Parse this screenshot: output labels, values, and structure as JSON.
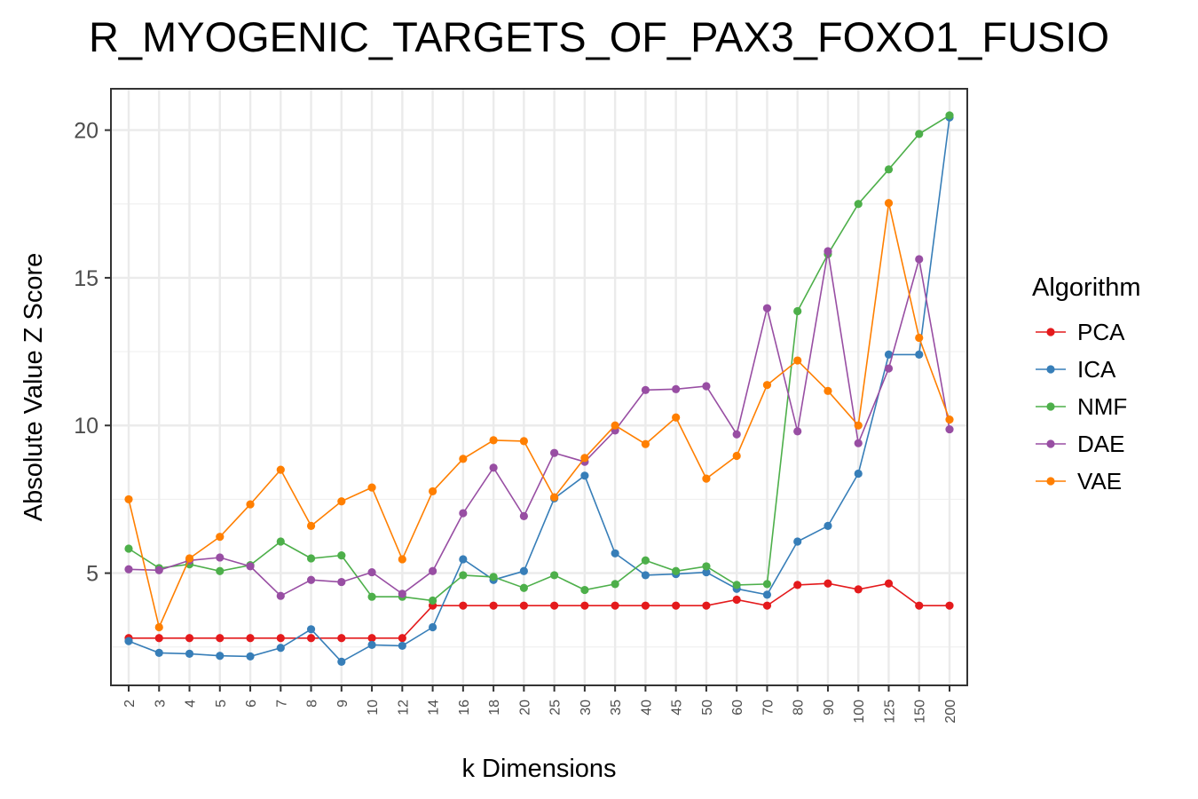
{
  "chart_data": {
    "type": "line",
    "title": "R_MYOGENIC_TARGETS_OF_PAX3_FOXO1_FUSIO",
    "xlabel": "k Dimensions",
    "ylabel": "Absolute Value Z Score",
    "categories": [
      "2",
      "3",
      "4",
      "5",
      "6",
      "7",
      "8",
      "9",
      "10",
      "12",
      "14",
      "16",
      "18",
      "20",
      "25",
      "30",
      "35",
      "40",
      "45",
      "50",
      "60",
      "70",
      "80",
      "90",
      "100",
      "125",
      "150",
      "200"
    ],
    "ylim": [
      1.2,
      21.4
    ],
    "yticks": [
      5,
      10,
      15,
      20
    ],
    "grid": true,
    "legend": {
      "title": "Algorithm",
      "placement": "right"
    },
    "series": [
      {
        "name": "PCA",
        "color": "#E41A1C",
        "values": [
          2.8,
          2.8,
          2.8,
          2.8,
          2.8,
          2.8,
          2.8,
          2.8,
          2.8,
          2.8,
          3.9,
          3.9,
          3.9,
          3.9,
          3.9,
          3.9,
          3.9,
          3.9,
          3.9,
          3.9,
          4.1,
          3.9,
          4.6,
          4.65,
          4.45,
          4.65,
          3.9,
          3.9
        ]
      },
      {
        "name": "ICA",
        "color": "#377EB8",
        "values": [
          2.7,
          2.3,
          2.27,
          2.2,
          2.18,
          2.47,
          3.1,
          2.0,
          2.57,
          2.54,
          3.17,
          5.47,
          4.77,
          5.07,
          7.53,
          8.3,
          5.67,
          4.93,
          4.97,
          5.03,
          4.47,
          4.27,
          6.07,
          6.6,
          8.37,
          12.4,
          12.4,
          20.43
        ]
      },
      {
        "name": "NMF",
        "color": "#4DAF4A",
        "values": [
          5.83,
          5.17,
          5.3,
          5.07,
          5.27,
          6.07,
          5.5,
          5.6,
          4.2,
          4.2,
          4.07,
          4.93,
          4.87,
          4.5,
          4.93,
          4.43,
          4.63,
          5.43,
          5.07,
          5.23,
          4.6,
          4.63,
          13.87,
          15.8,
          17.5,
          18.67,
          19.87,
          20.5
        ]
      },
      {
        "name": "DAE",
        "color": "#984EA3",
        "values": [
          5.13,
          5.1,
          5.43,
          5.53,
          5.23,
          4.23,
          4.77,
          4.7,
          5.03,
          4.3,
          5.07,
          7.03,
          8.57,
          6.93,
          9.07,
          8.77,
          9.83,
          11.2,
          11.23,
          11.33,
          9.7,
          13.97,
          9.8,
          15.9,
          9.4,
          11.93,
          15.63,
          9.87
        ]
      },
      {
        "name": "VAE",
        "color": "#FF7F00",
        "values": [
          7.5,
          3.17,
          5.5,
          6.23,
          7.33,
          8.5,
          6.6,
          7.43,
          7.9,
          5.47,
          7.77,
          8.87,
          9.5,
          9.47,
          7.57,
          8.9,
          10.0,
          9.37,
          10.27,
          8.2,
          8.97,
          11.37,
          12.2,
          11.17,
          10.0,
          17.53,
          12.97,
          10.2
        ]
      }
    ]
  }
}
